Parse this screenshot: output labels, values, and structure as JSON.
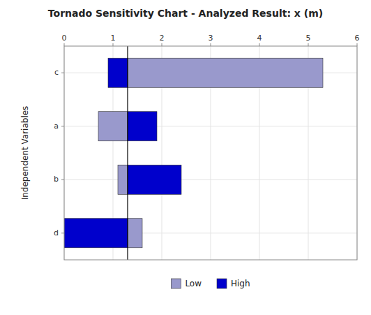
{
  "chart_data": {
    "type": "bar",
    "orientation": "horizontal",
    "title": "Tornado Sensitivity Chart - Analyzed Result: x (m)",
    "ylabel": "Independent Variables",
    "categories": [
      "c",
      "a",
      "b",
      "d"
    ],
    "baseline": 1.3,
    "series": [
      {
        "name": "Low",
        "color": "#9999cc",
        "values": [
          5.3,
          0.7,
          1.1,
          1.6
        ]
      },
      {
        "name": "High",
        "color": "#0000cc",
        "values": [
          0.9,
          1.9,
          2.4,
          0.0
        ]
      }
    ],
    "xlim": [
      0,
      6
    ],
    "xticks": [
      0,
      1,
      2,
      3,
      4,
      5,
      6
    ],
    "grid": true,
    "legend": "bottom"
  }
}
